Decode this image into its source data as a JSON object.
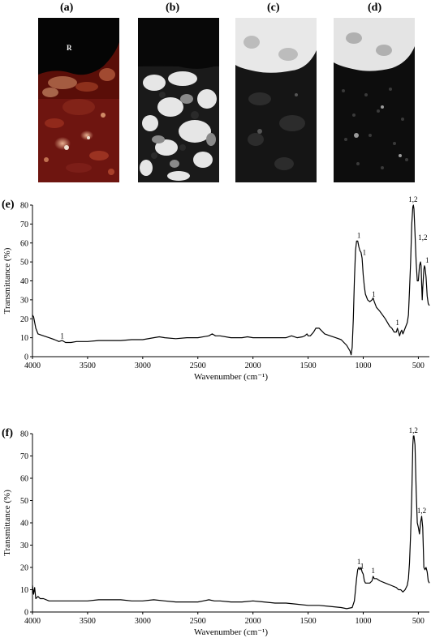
{
  "figure": {
    "micrographs": [
      {
        "label": "(a)",
        "inset": "R"
      },
      {
        "label": "(b)"
      },
      {
        "label": "(c)"
      },
      {
        "label": "(d)"
      }
    ]
  },
  "colors": {
    "line": "#000000",
    "red_tone": "#7a1a10",
    "dark": "#050505"
  },
  "chart_data": [
    {
      "type": "line",
      "panel_label": "(e)",
      "xlabel": "Wavenumber (cm⁻¹)",
      "ylabel": "Transmittance (%)",
      "xlim": [
        4000,
        400
      ],
      "ylim": [
        0,
        80
      ],
      "x_reversed": true,
      "xticks": [
        4000,
        3500,
        3000,
        2500,
        2000,
        1500,
        1000,
        500
      ],
      "yticks": [
        0,
        10,
        20,
        30,
        40,
        50,
        60,
        70,
        80
      ],
      "series": [
        {
          "x": [
            4000,
            3990,
            3970,
            3950,
            3900,
            3850,
            3800,
            3760,
            3730,
            3700,
            3650,
            3600,
            3500,
            3400,
            3300,
            3200,
            3100,
            3000,
            2900,
            2850,
            2800,
            2700,
            2600,
            2500,
            2400,
            2370,
            2340,
            2300,
            2200,
            2100,
            2050,
            2000,
            1900,
            1800,
            1700,
            1650,
            1600,
            1550,
            1530,
            1510,
            1500,
            1480,
            1450,
            1430,
            1400,
            1350,
            1300,
            1250,
            1200,
            1150,
            1120,
            1110,
            1100,
            1090,
            1080,
            1070,
            1060,
            1050,
            1040,
            1030,
            1020,
            1010,
            1000,
            990,
            980,
            960,
            940,
            920,
            910,
            900,
            880,
            850,
            800,
            780,
            760,
            740,
            720,
            700,
            690,
            680,
            670,
            660,
            650,
            640,
            620,
            600,
            590,
            580,
            570,
            560,
            550,
            545,
            540,
            530,
            520,
            510,
            500,
            490,
            480,
            475,
            470,
            465,
            460,
            450,
            445,
            440,
            430,
            420,
            410,
            400
          ],
          "y": [
            22,
            21,
            15,
            12,
            11,
            10,
            9,
            8,
            8.5,
            7.5,
            7.5,
            8,
            8,
            8.5,
            8.5,
            8.5,
            9,
            9,
            10,
            10.5,
            10,
            9.5,
            10,
            10,
            11,
            12,
            11,
            11,
            10,
            10,
            10.5,
            10,
            10,
            10,
            10,
            11,
            10,
            10.5,
            11,
            12,
            11,
            11,
            13,
            15,
            15,
            12,
            11,
            10,
            9,
            6,
            3,
            1,
            5,
            20,
            40,
            56,
            61,
            61,
            58,
            56,
            55,
            52,
            43,
            37,
            33,
            30,
            29,
            30,
            31,
            29,
            26,
            24,
            20,
            18,
            16,
            15,
            13,
            13,
            15,
            13,
            11,
            13,
            14,
            12,
            15,
            18,
            22,
            35,
            50,
            70,
            79,
            80,
            78,
            65,
            50,
            40,
            40,
            48,
            50,
            48,
            38,
            30,
            36,
            46,
            48,
            47,
            42,
            32,
            28,
            27
          ]
        }
      ],
      "annotations": [
        {
          "x": 3730,
          "y": 8,
          "text": "1"
        },
        {
          "x": 1040,
          "y": 61,
          "text": "1"
        },
        {
          "x": 990,
          "y": 52,
          "text": "1"
        },
        {
          "x": 905,
          "y": 30,
          "text": "1"
        },
        {
          "x": 690,
          "y": 15,
          "text": "1"
        },
        {
          "x": 548,
          "y": 80,
          "text": "1,2"
        },
        {
          "x": 460,
          "y": 60,
          "text": "1,2"
        },
        {
          "x": 420,
          "y": 48,
          "text": "1"
        }
      ]
    },
    {
      "type": "line",
      "panel_label": "(f)",
      "xlabel": "Wavenumber (cm⁻¹)",
      "ylabel": "Transmittance (%)",
      "xlim": [
        4000,
        400
      ],
      "ylim": [
        0,
        80
      ],
      "x_reversed": true,
      "xticks": [
        4000,
        3500,
        3000,
        2500,
        2000,
        1500,
        1000,
        500
      ],
      "yticks": [
        0,
        10,
        20,
        30,
        40,
        50,
        60,
        70,
        80
      ],
      "series": [
        {
          "x": [
            4000,
            3990,
            3980,
            3970,
            3950,
            3930,
            3900,
            3850,
            3800,
            3700,
            3600,
            3500,
            3400,
            3300,
            3200,
            3100,
            3000,
            2900,
            2800,
            2700,
            2600,
            2500,
            2450,
            2400,
            2350,
            2300,
            2200,
            2100,
            2000,
            1900,
            1800,
            1700,
            1600,
            1500,
            1400,
            1300,
            1200,
            1150,
            1100,
            1080,
            1070,
            1060,
            1050,
            1040,
            1030,
            1020,
            1010,
            1000,
            990,
            980,
            960,
            940,
            920,
            910,
            900,
            880,
            850,
            800,
            750,
            700,
            680,
            660,
            640,
            620,
            600,
            590,
            580,
            570,
            560,
            550,
            545,
            540,
            530,
            520,
            510,
            500,
            490,
            480,
            470,
            460,
            450,
            440,
            430,
            420,
            410,
            400
          ],
          "y": [
            12,
            8,
            11,
            6,
            7,
            6,
            6,
            5,
            5,
            5,
            5,
            5,
            5.5,
            5.5,
            5.5,
            5,
            5,
            5.5,
            5,
            4.5,
            4.5,
            4.5,
            5,
            5.5,
            5,
            5,
            4.5,
            4.5,
            5,
            4.5,
            4,
            4,
            3.5,
            3,
            3,
            2.5,
            2,
            1.5,
            2,
            5,
            10,
            15,
            19,
            20,
            19,
            20,
            18,
            17,
            14,
            13,
            13,
            13,
            14,
            16,
            15,
            15,
            14,
            13,
            12,
            11,
            10,
            10,
            9,
            10,
            12,
            15,
            22,
            35,
            52,
            75,
            79,
            79,
            75,
            55,
            40,
            38,
            35,
            40,
            43,
            38,
            20,
            19,
            20,
            18,
            14,
            13
          ]
        }
      ],
      "annotations": [
        {
          "x": 1040,
          "y": 20,
          "text": "1"
        },
        {
          "x": 1010,
          "y": 18,
          "text": "1"
        },
        {
          "x": 910,
          "y": 16,
          "text": "1"
        },
        {
          "x": 545,
          "y": 79,
          "text": "1,2"
        },
        {
          "x": 470,
          "y": 43,
          "text": "1,2"
        }
      ]
    }
  ]
}
